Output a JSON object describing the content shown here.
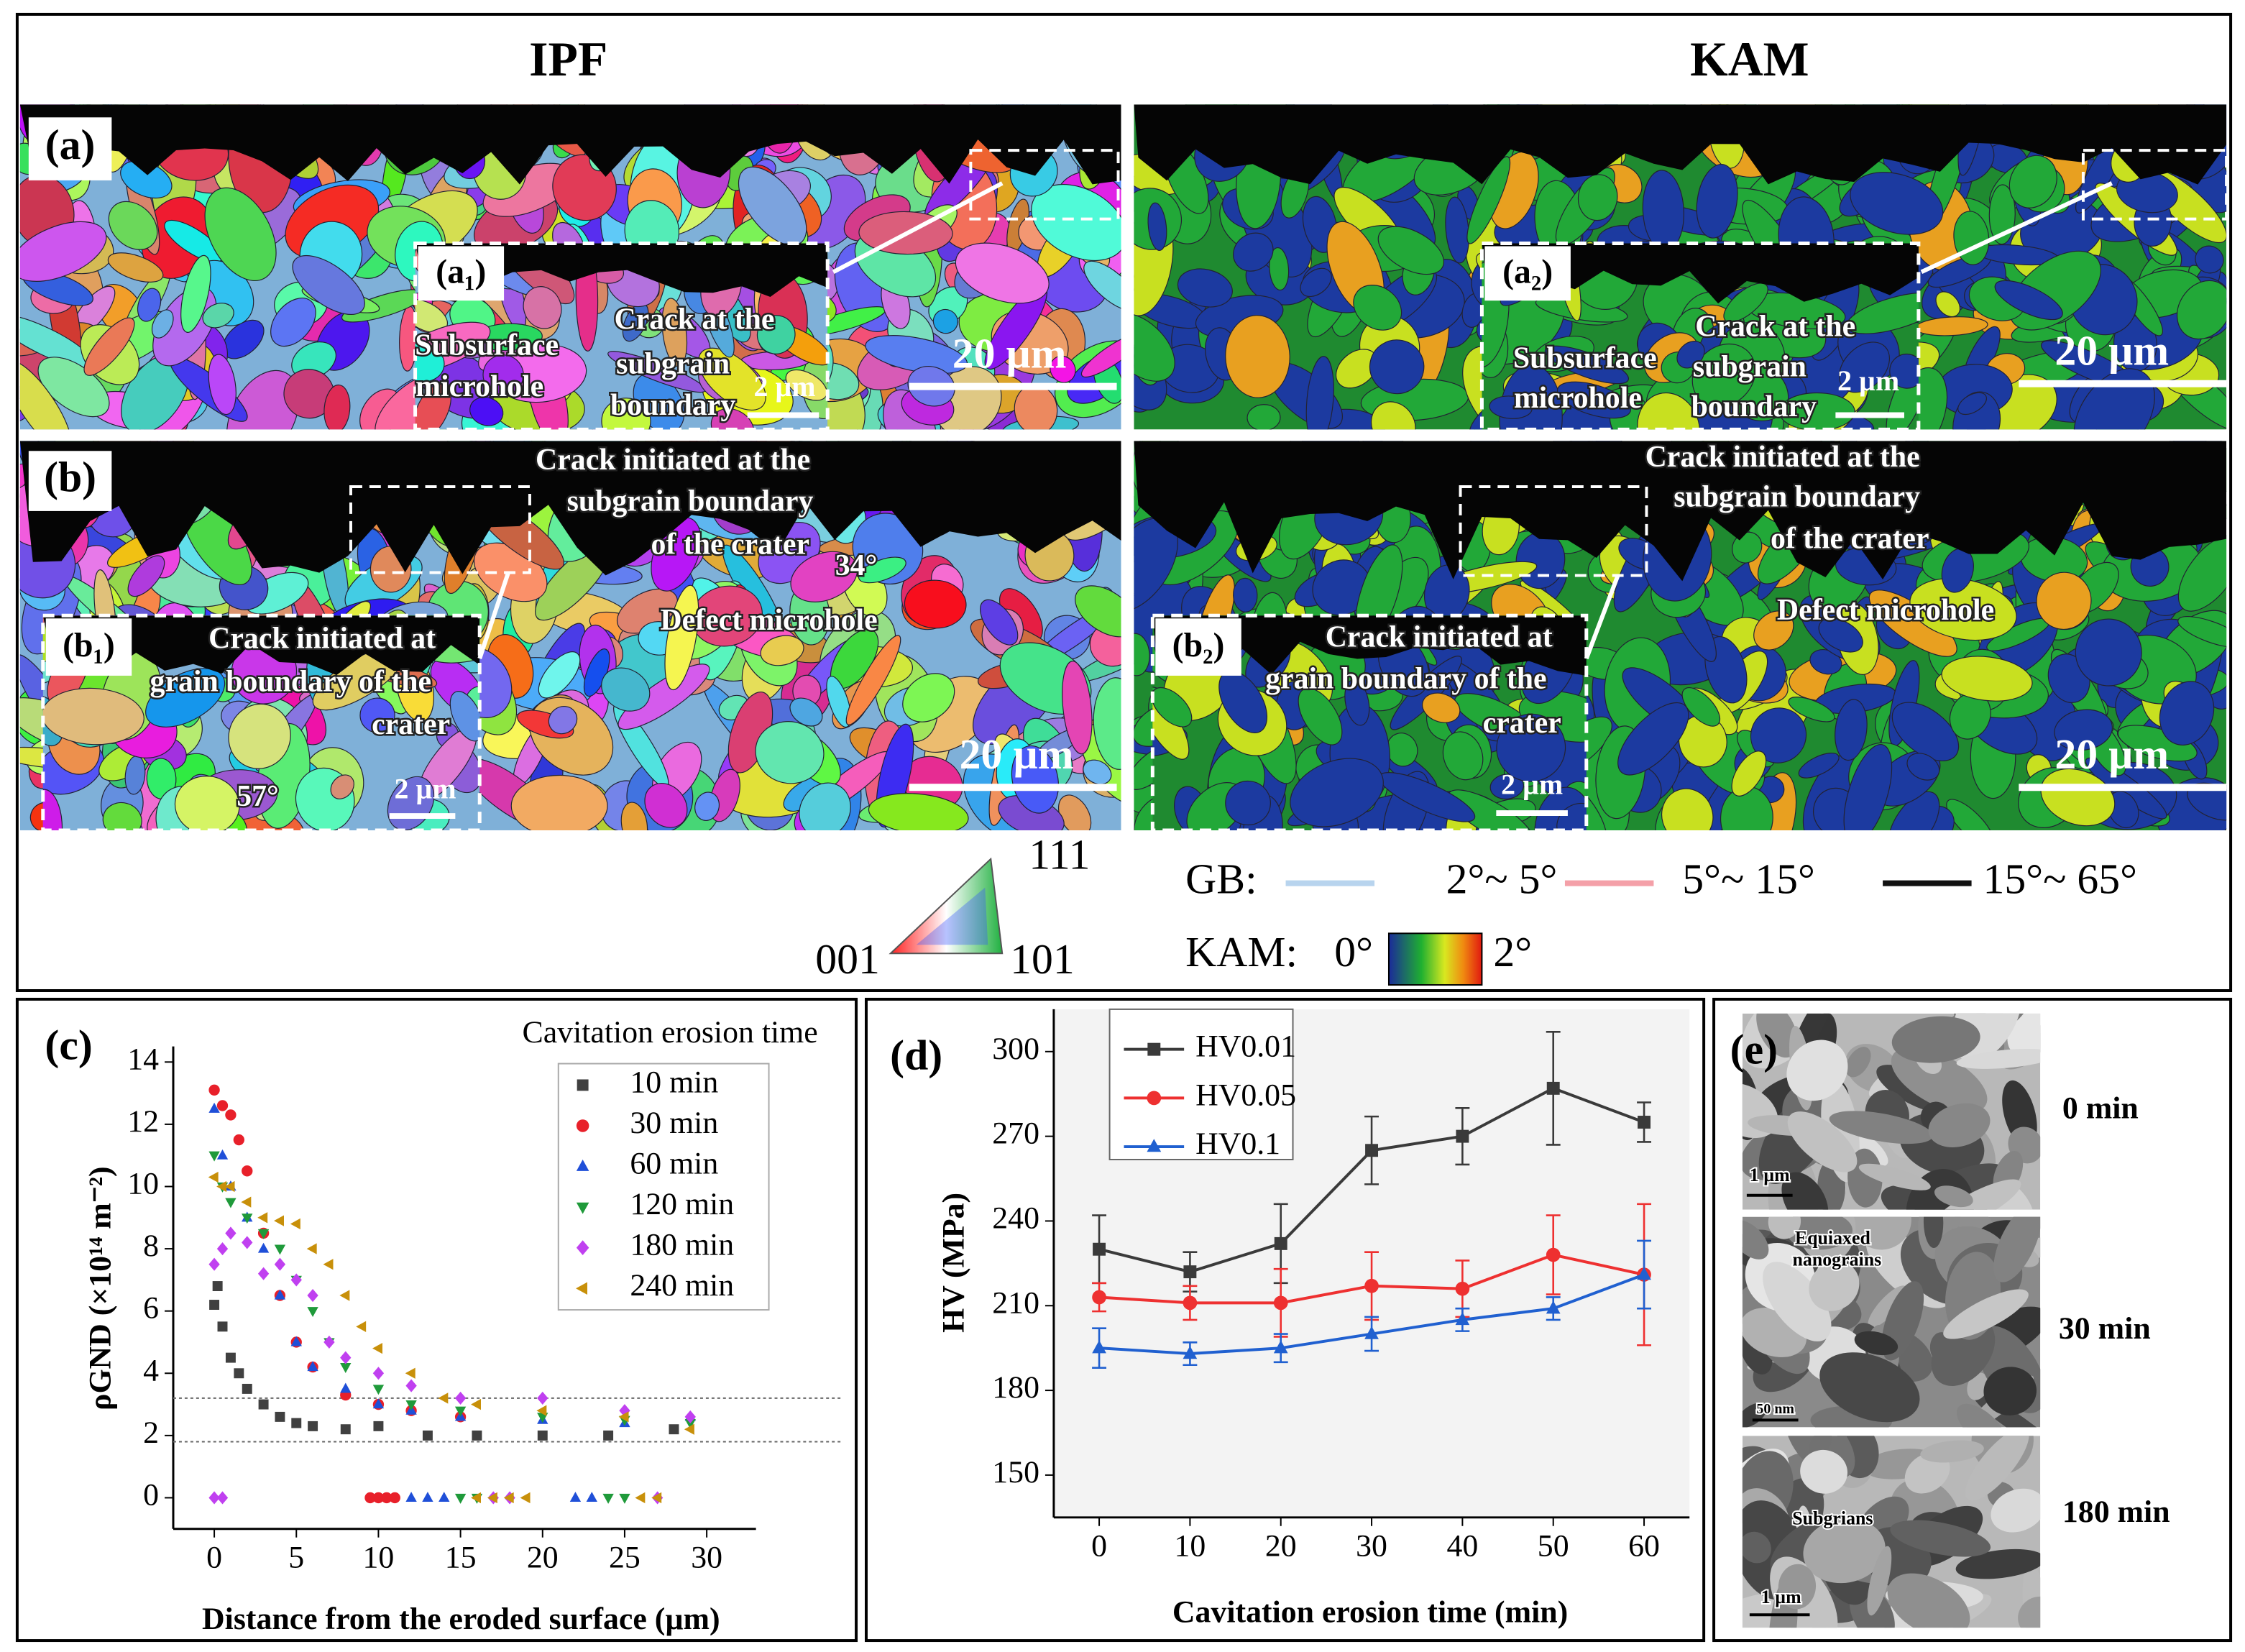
{
  "figure": {
    "column_titles": [
      "IPF",
      "KAM"
    ],
    "maps": [
      {
        "label": "(a)",
        "scale_bar": "20 µm",
        "inset": {
          "label": "(a₁)",
          "scale_bar": "2 µm",
          "annotations": [
            "Subsurface",
            "microhole",
            "Crack at the",
            "subgrain",
            "boundary"
          ]
        }
      },
      {
        "scale_bar": "20 µm",
        "inset": {
          "label": "(a₂)",
          "scale_bar": "2 µm",
          "annotations": [
            "Subsurface",
            "microhole",
            "Crack at the",
            "subgrain",
            "boundary"
          ]
        }
      },
      {
        "label": "(b)",
        "scale_bar": "20 µm",
        "annotations": [
          "Crack initiated at the",
          "subgrain boundary",
          "of the crater",
          "34°",
          "Defect microhole"
        ],
        "inset": {
          "label": "(b₁)",
          "scale_bar": "2 µm",
          "annotations": [
            "Crack initiated at",
            "grain boundary of the",
            "crater",
            "57°"
          ]
        }
      },
      {
        "scale_bar": "20 µm",
        "annotations": [
          "Crack initiated at the",
          "subgrain boundary",
          "of the crater",
          "Defect microhole"
        ],
        "inset": {
          "label": "(b₂)",
          "scale_bar": "2 µm",
          "annotations": [
            "Crack initiated at",
            "grain boundary of the",
            "crater"
          ]
        }
      }
    ],
    "ipf_legend": {
      "corners": [
        "111",
        "001",
        "101"
      ]
    },
    "gb_legend": {
      "title": "GB:",
      "entries": [
        {
          "label": "2°~ 5°",
          "color": "#b8d4ee"
        },
        {
          "label": "5°~ 15°",
          "color": "#f4a0a8"
        },
        {
          "label": "15°~ 65°",
          "color": "#111111"
        }
      ]
    },
    "kam_legend": {
      "title": "KAM:",
      "min": "0°",
      "max": "2°"
    }
  },
  "chart_data": [
    {
      "type": "scatter",
      "panel_label": "(c)",
      "x_label": "Distance from the eroded surface (µm)",
      "y_label": "ρGND (×10¹⁴ m⁻²)",
      "legend_title": "Cavitation erosion time",
      "xlim": [
        -2.5,
        33
      ],
      "ylim": [
        -1,
        14.5
      ],
      "xticks": [
        0,
        5,
        10,
        15,
        20,
        25,
        30
      ],
      "yticks": [
        0,
        2,
        4,
        6,
        8,
        10,
        12,
        14
      ],
      "reference_lines": [
        3.2,
        1.8
      ],
      "series": [
        {
          "name": "10 min",
          "color": "#404040",
          "marker": "square",
          "x": [
            0,
            0.2,
            0.5,
            1,
            1.5,
            2,
            3,
            4,
            5,
            6,
            8,
            10,
            13,
            16,
            20,
            24,
            28
          ],
          "values": [
            6.2,
            6.8,
            5.5,
            4.5,
            4,
            3.5,
            3.0,
            2.6,
            2.4,
            2.3,
            2.2,
            2.3,
            2.0,
            2.0,
            2.0,
            2.0,
            2.2
          ]
        },
        {
          "name": "30 min",
          "color": "#e8202a",
          "marker": "circle",
          "x": [
            0,
            0.5,
            1,
            1.5,
            2,
            3,
            4,
            5,
            6,
            8,
            10,
            12,
            15,
            9.5,
            10,
            10.5,
            11
          ],
          "values": [
            13.1,
            12.6,
            12.3,
            11.5,
            10.5,
            8.5,
            6.5,
            5,
            4.2,
            3.3,
            3.0,
            2.8,
            2.6,
            0,
            0,
            0,
            0
          ]
        },
        {
          "name": "60 min",
          "color": "#1f4fd8",
          "marker": "triangle-up",
          "x": [
            0,
            0.5,
            1,
            2,
            3,
            4,
            5,
            6,
            8,
            10,
            12,
            15,
            20,
            25,
            29,
            12,
            13,
            14,
            22,
            23
          ],
          "values": [
            12.5,
            11,
            10,
            9,
            8,
            6.5,
            5,
            4.2,
            3.5,
            3,
            2.8,
            2.6,
            2.5,
            2.4,
            2.6,
            0,
            0,
            0,
            0,
            0
          ]
        },
        {
          "name": "120 min",
          "color": "#1f9a3a",
          "marker": "triangle-down",
          "x": [
            0,
            0.5,
            1,
            2,
            3,
            4,
            5,
            6,
            7,
            8,
            10,
            12,
            15,
            20,
            25,
            29,
            15,
            16,
            24,
            25
          ],
          "values": [
            11,
            10,
            9.5,
            9,
            8.5,
            8,
            7,
            6,
            5,
            4.2,
            3.5,
            3,
            2.8,
            2.6,
            2.5,
            2.4,
            0,
            0,
            0,
            0
          ]
        },
        {
          "name": "180 min",
          "color": "#c040f0",
          "marker": "diamond",
          "x": [
            0,
            0.5,
            1,
            2,
            3,
            4,
            5,
            6,
            7,
            8,
            10,
            12,
            15,
            20,
            25,
            29,
            0,
            0.5,
            17,
            18,
            27
          ],
          "values": [
            7.5,
            8,
            8.5,
            8.2,
            7.2,
            7.5,
            7,
            6.5,
            5,
            4.5,
            4,
            3.6,
            3.2,
            3.2,
            2.8,
            2.6,
            0,
            0,
            0,
            0,
            0
          ]
        },
        {
          "name": "240 min",
          "color": "#c8900a",
          "marker": "triangle-left",
          "x": [
            0,
            0.5,
            1,
            2,
            3,
            4,
            5,
            6,
            7,
            8,
            9,
            10,
            12,
            14,
            16,
            20,
            25,
            29,
            16,
            17,
            18,
            19,
            26,
            27
          ],
          "values": [
            10.3,
            10,
            10,
            9.5,
            9,
            8.9,
            8.8,
            8,
            7.5,
            6.5,
            5.5,
            4.8,
            4,
            3.2,
            3.0,
            2.8,
            2.6,
            2.2,
            0,
            0,
            0,
            0,
            0,
            0
          ]
        }
      ]
    },
    {
      "type": "line",
      "panel_label": "(d)",
      "x_label": "Cavitation erosion time (min)",
      "y_label": "HV (MPa)",
      "xlim": [
        -5,
        65
      ],
      "ylim": [
        135,
        315
      ],
      "xticks": [
        0,
        10,
        20,
        30,
        40,
        50,
        60
      ],
      "yticks": [
        150,
        180,
        210,
        240,
        270,
        300
      ],
      "x": [
        0,
        10,
        20,
        30,
        40,
        50,
        60
      ],
      "series": [
        {
          "name": "HV0.01",
          "color": "#3a3a3a",
          "marker": "square",
          "values": [
            230,
            222,
            232,
            265,
            270,
            287,
            275
          ],
          "errors": [
            12,
            7,
            14,
            12,
            10,
            20,
            7
          ]
        },
        {
          "name": "HV0.05",
          "color": "#ee3030",
          "marker": "circle",
          "values": [
            213,
            211,
            211,
            217,
            216,
            228,
            221
          ],
          "errors": [
            5,
            6,
            12,
            12,
            10,
            14,
            25
          ]
        },
        {
          "name": "HV0.1",
          "color": "#2060d0",
          "marker": "triangle-up",
          "values": [
            195,
            193,
            195,
            200,
            205,
            209,
            221
          ],
          "errors": [
            7,
            4,
            5,
            6,
            4,
            4,
            12
          ]
        }
      ]
    }
  ],
  "panel_e": {
    "label": "(e)",
    "images": [
      {
        "time": "0 min",
        "annotations": [
          "1 µm"
        ]
      },
      {
        "time": "30 min",
        "annotations": [
          "Equiaxed",
          "nanograins",
          "50 nm"
        ]
      },
      {
        "time": "180 min",
        "annotations": [
          "Subgrians",
          "1 µm"
        ]
      }
    ]
  }
}
